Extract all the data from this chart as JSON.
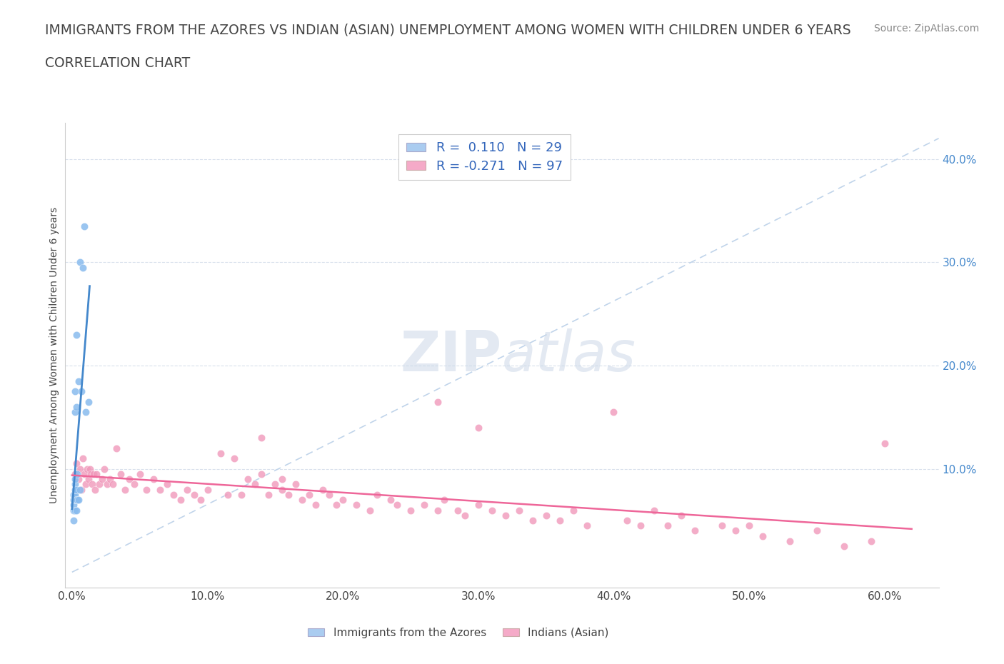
{
  "title_line1": "IMMIGRANTS FROM THE AZORES VS INDIAN (ASIAN) UNEMPLOYMENT AMONG WOMEN WITH CHILDREN UNDER 6 YEARS",
  "title_line2": "CORRELATION CHART",
  "source_text": "Source: ZipAtlas.com",
  "ylabel": "Unemployment Among Women with Children Under 6 years",
  "xlabel_ticks": [
    "0.0%",
    "10.0%",
    "20.0%",
    "30.0%",
    "40.0%",
    "50.0%",
    "60.0%"
  ],
  "xlabel_vals": [
    0.0,
    0.1,
    0.2,
    0.3,
    0.4,
    0.5,
    0.6
  ],
  "xlim": [
    -0.005,
    0.64
  ],
  "ylim": [
    -0.015,
    0.435
  ],
  "r_azores": 0.11,
  "n_azores": 29,
  "r_indians": -0.271,
  "n_indians": 97,
  "legend_color_azores": "#aaccf0",
  "legend_color_indians": "#f5aac8",
  "scatter_color_azores": "#88bbee",
  "scatter_color_indians": "#f099bb",
  "trend_color_azores": "#4488cc",
  "trend_color_indians": "#ee6699",
  "trend_dash_color": "#c0d4ea",
  "title_color": "#444444",
  "title_fontsize": 13.5,
  "subtitle_fontsize": 13.5,
  "watermark_color": "#ccd8e8",
  "watermark_alpha": 0.55,
  "right_ytick_vals": [
    0.1,
    0.2,
    0.3,
    0.4
  ],
  "right_ytick_labels": [
    "10.0%",
    "20.0%",
    "30.0%",
    "40.0%"
  ],
  "azores_x": [
    0.001,
    0.001,
    0.001,
    0.001,
    0.001,
    0.002,
    0.002,
    0.002,
    0.002,
    0.002,
    0.002,
    0.002,
    0.002,
    0.003,
    0.003,
    0.003,
    0.003,
    0.003,
    0.004,
    0.004,
    0.005,
    0.005,
    0.006,
    0.006,
    0.007,
    0.008,
    0.009,
    0.01,
    0.012
  ],
  "azores_y": [
    0.05,
    0.06,
    0.065,
    0.07,
    0.075,
    0.06,
    0.07,
    0.075,
    0.08,
    0.085,
    0.09,
    0.155,
    0.175,
    0.06,
    0.07,
    0.08,
    0.16,
    0.23,
    0.07,
    0.095,
    0.07,
    0.185,
    0.08,
    0.3,
    0.175,
    0.295,
    0.335,
    0.155,
    0.165
  ],
  "indians_x": [
    0.002,
    0.003,
    0.005,
    0.006,
    0.007,
    0.008,
    0.009,
    0.01,
    0.011,
    0.012,
    0.013,
    0.014,
    0.015,
    0.016,
    0.017,
    0.018,
    0.02,
    0.022,
    0.024,
    0.026,
    0.028,
    0.03,
    0.033,
    0.036,
    0.039,
    0.042,
    0.046,
    0.05,
    0.055,
    0.06,
    0.065,
    0.07,
    0.075,
    0.08,
    0.085,
    0.09,
    0.095,
    0.1,
    0.11,
    0.115,
    0.12,
    0.125,
    0.13,
    0.135,
    0.14,
    0.145,
    0.15,
    0.155,
    0.16,
    0.165,
    0.17,
    0.175,
    0.18,
    0.185,
    0.19,
    0.195,
    0.2,
    0.21,
    0.22,
    0.225,
    0.235,
    0.24,
    0.25,
    0.26,
    0.27,
    0.275,
    0.285,
    0.29,
    0.3,
    0.31,
    0.32,
    0.33,
    0.34,
    0.35,
    0.36,
    0.37,
    0.38,
    0.4,
    0.41,
    0.42,
    0.43,
    0.44,
    0.45,
    0.46,
    0.48,
    0.49,
    0.5,
    0.51,
    0.53,
    0.55,
    0.57,
    0.59,
    0.6,
    0.27,
    0.3,
    0.14,
    0.155
  ],
  "indians_y": [
    0.095,
    0.105,
    0.09,
    0.1,
    0.08,
    0.11,
    0.095,
    0.085,
    0.1,
    0.09,
    0.1,
    0.095,
    0.085,
    0.095,
    0.08,
    0.095,
    0.085,
    0.09,
    0.1,
    0.085,
    0.09,
    0.085,
    0.12,
    0.095,
    0.08,
    0.09,
    0.085,
    0.095,
    0.08,
    0.09,
    0.08,
    0.085,
    0.075,
    0.07,
    0.08,
    0.075,
    0.07,
    0.08,
    0.115,
    0.075,
    0.11,
    0.075,
    0.09,
    0.085,
    0.095,
    0.075,
    0.085,
    0.09,
    0.075,
    0.085,
    0.07,
    0.075,
    0.065,
    0.08,
    0.075,
    0.065,
    0.07,
    0.065,
    0.06,
    0.075,
    0.07,
    0.065,
    0.06,
    0.065,
    0.06,
    0.07,
    0.06,
    0.055,
    0.065,
    0.06,
    0.055,
    0.06,
    0.05,
    0.055,
    0.05,
    0.06,
    0.045,
    0.155,
    0.05,
    0.045,
    0.06,
    0.045,
    0.055,
    0.04,
    0.045,
    0.04,
    0.045,
    0.035,
    0.03,
    0.04,
    0.025,
    0.03,
    0.125,
    0.165,
    0.14,
    0.13,
    0.08
  ]
}
